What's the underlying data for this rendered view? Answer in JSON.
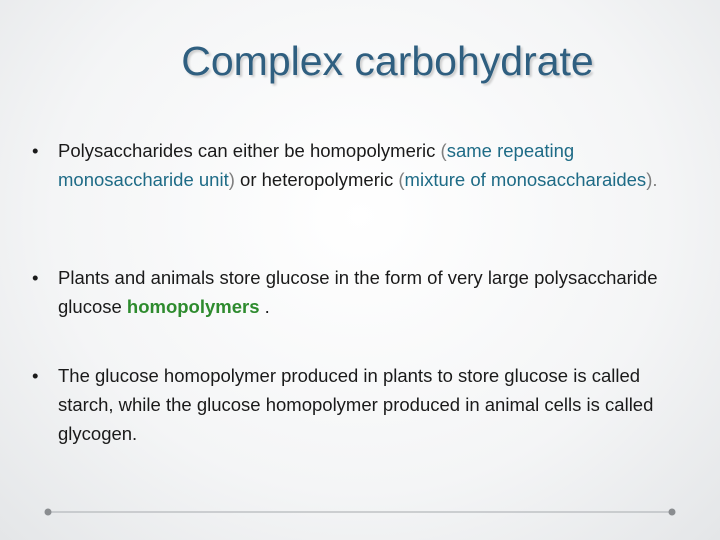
{
  "header": {
    "title": "Complex carbohydrate"
  },
  "bullets": [
    {
      "segments": [
        {
          "text": "Polysaccharides can either be homopolymeric ",
          "color": "#1a1a1a"
        },
        {
          "text": "(",
          "color": "#7f7f7f"
        },
        {
          "text": "same repeating monosaccharide unit",
          "color": "#1e6b86"
        },
        {
          "text": ")",
          "color": "#7f7f7f"
        },
        {
          "text": " or heteropolymeric ",
          "color": "#1a1a1a"
        },
        {
          "text": "(",
          "color": "#7f7f7f"
        },
        {
          "text": "mixture of monosaccharaides",
          "color": "#1e6b86"
        },
        {
          "text": ").",
          "color": "#7f7f7f"
        }
      ]
    },
    {
      "segments": [
        {
          "text": "Plants and animals store glucose in the form of very large polysaccharide glucose ",
          "color": "#1a1a1a"
        },
        {
          "text": "homopolymers",
          "color": "#2e8b2e",
          "bold": true
        },
        {
          "text": " .",
          "color": "#1a1a1a"
        }
      ]
    },
    {
      "segments": [
        {
          "text": "The glucose homopolymer produced in plants to store glucose is called starch, while the glucose homopolymer produced in animal cells is called glycogen.",
          "color": "#1a1a1a"
        }
      ]
    }
  ]
}
